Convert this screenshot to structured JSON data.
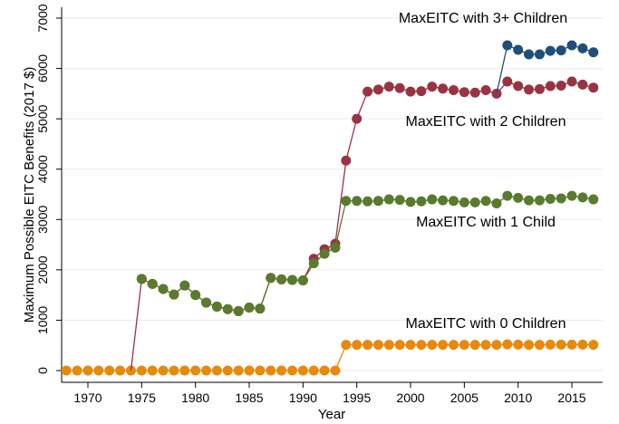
{
  "chart_data": {
    "type": "line",
    "title": "",
    "xlabel": "Year",
    "ylabel": "Maximum Possible EITC Benefits (2017 $)",
    "xlim": [
      1967.5,
      2018
    ],
    "ylim": [
      0,
      7000
    ],
    "xticks": [
      1970,
      1975,
      1980,
      1985,
      1990,
      1995,
      2000,
      2005,
      2010,
      2015
    ],
    "yticks": [
      0,
      1000,
      2000,
      3000,
      4000,
      5000,
      6000,
      7000
    ],
    "grid": true,
    "series": [
      {
        "name": "MaxEITC with 0 Children",
        "color": "#e8890c",
        "label": "MaxEITC with 0 Children",
        "x": [
          1968,
          1969,
          1970,
          1971,
          1972,
          1973,
          1974,
          1975,
          1976,
          1977,
          1978,
          1979,
          1980,
          1981,
          1982,
          1983,
          1984,
          1985,
          1986,
          1987,
          1988,
          1989,
          1990,
          1991,
          1992,
          1993,
          1994,
          1995,
          1996,
          1997,
          1998,
          1999,
          2000,
          2001,
          2002,
          2003,
          2004,
          2005,
          2006,
          2007,
          2008,
          2009,
          2010,
          2011,
          2012,
          2013,
          2014,
          2015,
          2016,
          2017
        ],
        "values": [
          0,
          0,
          0,
          0,
          0,
          0,
          0,
          0,
          0,
          0,
          0,
          0,
          0,
          0,
          0,
          0,
          0,
          0,
          0,
          0,
          0,
          0,
          0,
          0,
          0,
          0,
          510,
          510,
          510,
          510,
          510,
          510,
          510,
          510,
          510,
          510,
          510,
          510,
          510,
          510,
          510,
          520,
          515,
          510,
          510,
          515,
          515,
          515,
          515,
          510
        ]
      },
      {
        "name": "MaxEITC with 2 Children",
        "color": "#993344",
        "label": "MaxEITC with 2 Children",
        "x": [
          1974,
          1975,
          1976,
          1977,
          1978,
          1979,
          1980,
          1981,
          1982,
          1983,
          1984,
          1985,
          1986,
          1987,
          1988,
          1989,
          1990,
          1991,
          1992,
          1993,
          1994,
          1995,
          1996,
          1997,
          1998,
          1999,
          2000,
          2001,
          2002,
          2003,
          2004,
          2005,
          2006,
          2007,
          2008,
          2009,
          2010,
          2011,
          2012,
          2013,
          2014,
          2015,
          2016,
          2017
        ],
        "values": [
          0,
          1820,
          1720,
          1620,
          1510,
          1690,
          1500,
          1350,
          1270,
          1220,
          1180,
          1250,
          1230,
          1840,
          1810,
          1800,
          1790,
          2220,
          2410,
          2520,
          4170,
          5000,
          5540,
          5580,
          5640,
          5610,
          5540,
          5550,
          5640,
          5600,
          5570,
          5530,
          5520,
          5570,
          5500,
          5740,
          5650,
          5580,
          5590,
          5650,
          5660,
          5740,
          5680,
          5620
        ]
      },
      {
        "name": "MaxEITC with 1 Child",
        "color": "#5a7a2e",
        "label": "MaxEITC with 1 Child",
        "x": [
          1975,
          1976,
          1977,
          1978,
          1979,
          1980,
          1981,
          1982,
          1983,
          1984,
          1985,
          1986,
          1987,
          1988,
          1989,
          1990,
          1991,
          1992,
          1993,
          1994,
          1995,
          1996,
          1997,
          1998,
          1999,
          2000,
          2001,
          2002,
          2003,
          2004,
          2005,
          2006,
          2007,
          2008,
          2009,
          2010,
          2011,
          2012,
          2013,
          2014,
          2015,
          2016,
          2017
        ],
        "values": [
          1820,
          1720,
          1620,
          1510,
          1690,
          1500,
          1350,
          1270,
          1220,
          1180,
          1250,
          1230,
          1840,
          1810,
          1800,
          1790,
          2130,
          2320,
          2440,
          3370,
          3370,
          3360,
          3370,
          3400,
          3390,
          3350,
          3360,
          3400,
          3380,
          3370,
          3340,
          3340,
          3370,
          3320,
          3470,
          3430,
          3380,
          3380,
          3410,
          3420,
          3470,
          3440,
          3400
        ]
      },
      {
        "name": "MaxEITC with 3+ Children",
        "color": "#1f4e79",
        "label": "MaxEITC with 3+ Children",
        "x": [
          2008,
          2009,
          2010,
          2011,
          2012,
          2013,
          2014,
          2015,
          2016,
          2017
        ],
        "values": [
          5500,
          6460,
          6370,
          6280,
          6280,
          6350,
          6360,
          6460,
          6400,
          6320
        ]
      }
    ]
  }
}
